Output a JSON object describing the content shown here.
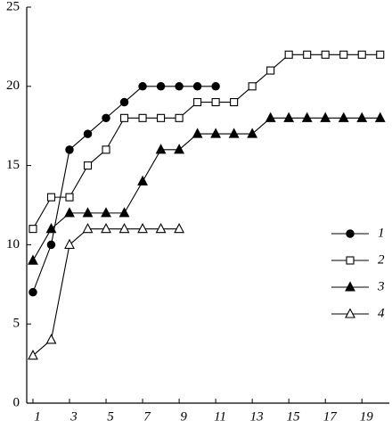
{
  "chart_data": {
    "type": "line",
    "x": [
      1,
      2,
      3,
      4,
      5,
      6,
      7,
      8,
      9,
      10,
      11,
      12,
      13,
      14,
      15,
      16,
      17,
      18,
      19,
      20
    ],
    "series": [
      {
        "name": "1",
        "color": "#000000",
        "marker": "circle",
        "filled": true,
        "values": [
          7,
          10,
          16,
          17,
          18,
          19,
          20,
          20,
          20,
          20,
          20,
          null,
          null,
          null,
          null,
          null,
          null,
          null,
          null,
          null
        ]
      },
      {
        "name": "2",
        "color": "#000000",
        "marker": "square",
        "filled": false,
        "values": [
          11,
          13,
          13,
          15,
          16,
          18,
          18,
          18,
          18,
          19,
          19,
          19,
          20,
          21,
          22,
          22,
          22,
          22,
          22,
          22
        ]
      },
      {
        "name": "3",
        "color": "#000000",
        "marker": "triangle",
        "filled": true,
        "values": [
          9,
          11,
          12,
          12,
          12,
          12,
          14,
          16,
          16,
          17,
          17,
          17,
          17,
          18,
          18,
          18,
          18,
          18,
          18,
          18
        ]
      },
      {
        "name": "4",
        "color": "#000000",
        "marker": "triangle",
        "filled": false,
        "values": [
          3,
          4,
          10,
          11,
          11,
          11,
          11,
          11,
          11,
          null,
          null,
          null,
          null,
          null,
          null,
          null,
          null,
          null,
          null,
          null
        ]
      }
    ],
    "xlim": [
      0.66,
      20.5
    ],
    "xticks": [
      1,
      3,
      5,
      7,
      9,
      11,
      13,
      15,
      17,
      19
    ],
    "ylim": [
      0,
      25
    ],
    "yticks": [
      0,
      5,
      10,
      15,
      20,
      25
    ],
    "grid": false,
    "legend": "right"
  }
}
